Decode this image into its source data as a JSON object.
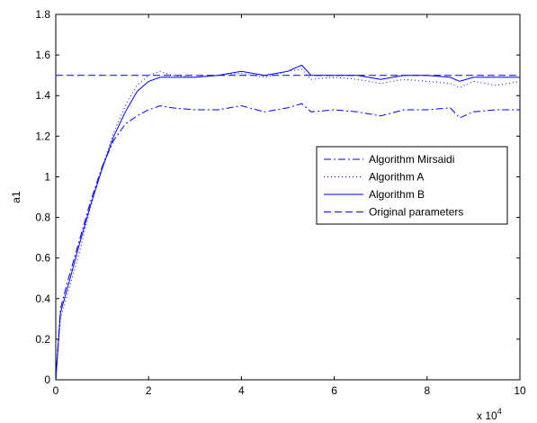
{
  "chart_data": {
    "type": "line",
    "title": "",
    "xlabel": "",
    "ylabel": "a1",
    "x_multiplier_label": {
      "base": "x 10",
      "exponent": "4"
    },
    "xlim": [
      0,
      10
    ],
    "ylim": [
      0,
      1.8
    ],
    "x_ticks": [
      "0",
      "2",
      "4",
      "6",
      "8",
      "10"
    ],
    "y_ticks": [
      "0",
      "0.2",
      "0.4",
      "0.6",
      "0.8",
      "1",
      "1.2",
      "1.4",
      "1.6",
      "1.8"
    ],
    "grid": false,
    "legend_position": "right",
    "line_color": "#0000ff",
    "series": [
      {
        "name": "Algorithm Mirsaidi",
        "style": "dashdot",
        "x": [
          0,
          0.1,
          0.25,
          0.5,
          0.75,
          1.0,
          1.25,
          1.5,
          1.75,
          2.0,
          2.25,
          2.5,
          3.0,
          3.5,
          4.0,
          4.5,
          5.0,
          5.3,
          5.5,
          6.0,
          6.5,
          7.0,
          7.5,
          8.0,
          8.5,
          8.7,
          9.0,
          9.5,
          10.0
        ],
        "y": [
          0,
          0.35,
          0.48,
          0.68,
          0.88,
          1.05,
          1.18,
          1.26,
          1.3,
          1.33,
          1.35,
          1.34,
          1.33,
          1.33,
          1.35,
          1.32,
          1.34,
          1.36,
          1.32,
          1.33,
          1.32,
          1.3,
          1.33,
          1.33,
          1.34,
          1.29,
          1.32,
          1.33,
          1.33
        ]
      },
      {
        "name": "Algorithm A",
        "style": "dotted",
        "x": [
          0,
          0.1,
          0.25,
          0.5,
          0.75,
          1.0,
          1.25,
          1.5,
          1.75,
          2.0,
          2.25,
          2.5,
          3.0,
          3.5,
          4.0,
          4.5,
          5.0,
          5.3,
          5.5,
          6.0,
          6.5,
          7.0,
          7.5,
          8.0,
          8.5,
          8.7,
          9.0,
          9.5,
          10.0
        ],
        "y": [
          0,
          0.3,
          0.42,
          0.62,
          0.85,
          1.05,
          1.22,
          1.35,
          1.45,
          1.5,
          1.52,
          1.5,
          1.49,
          1.5,
          1.51,
          1.49,
          1.52,
          1.53,
          1.48,
          1.49,
          1.48,
          1.46,
          1.48,
          1.47,
          1.46,
          1.44,
          1.47,
          1.45,
          1.47
        ]
      },
      {
        "name": "Algorithm B",
        "style": "solid",
        "x": [
          0,
          0.1,
          0.25,
          0.5,
          0.75,
          1.0,
          1.25,
          1.5,
          1.75,
          2.0,
          2.25,
          2.5,
          3.0,
          3.5,
          4.0,
          4.5,
          5.0,
          5.3,
          5.5,
          6.0,
          6.5,
          7.0,
          7.5,
          8.0,
          8.5,
          8.7,
          9.0,
          9.5,
          10.0
        ],
        "y": [
          0,
          0.33,
          0.45,
          0.66,
          0.86,
          1.04,
          1.2,
          1.32,
          1.42,
          1.47,
          1.49,
          1.49,
          1.49,
          1.5,
          1.52,
          1.5,
          1.52,
          1.55,
          1.5,
          1.5,
          1.5,
          1.48,
          1.5,
          1.5,
          1.49,
          1.47,
          1.49,
          1.49,
          1.49
        ]
      },
      {
        "name": "Original parameters",
        "style": "dashed",
        "x": [
          0,
          10
        ],
        "y": [
          1.5,
          1.5
        ]
      }
    ]
  }
}
